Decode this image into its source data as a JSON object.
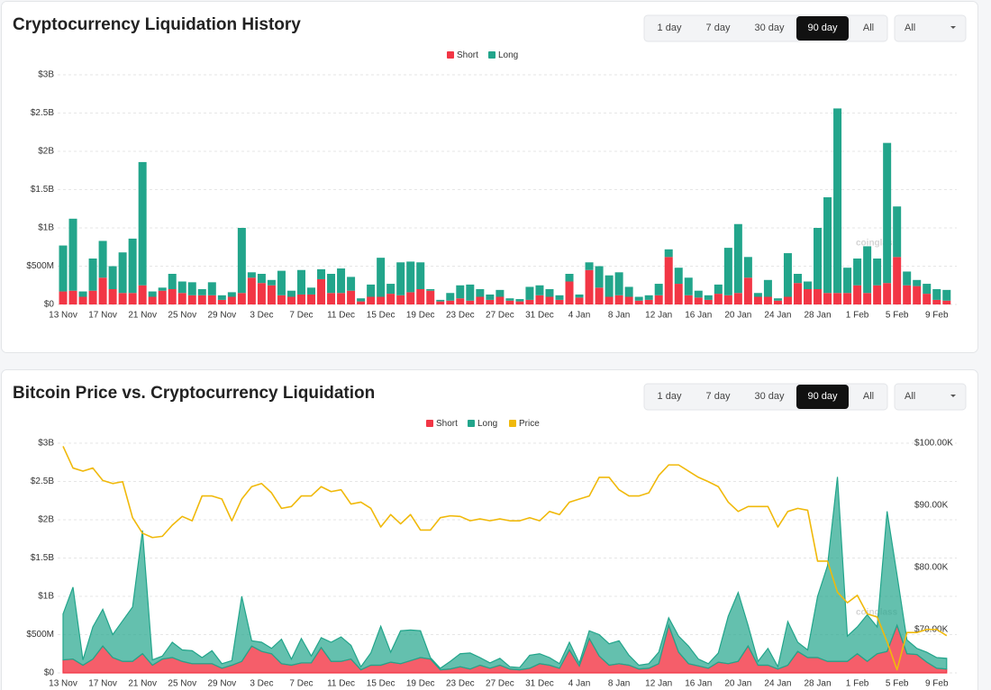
{
  "controls": {
    "ranges": [
      "1 day",
      "7 day",
      "30 day",
      "90 day",
      "All"
    ],
    "active": 3,
    "select": "All"
  },
  "chart_data": [
    {
      "type": "bar",
      "title": "Cryptocurrency Liquidation History",
      "watermark": "coinglass",
      "legend": "top",
      "grid": true,
      "stacked": true,
      "categories": [
        "13 Nov",
        null,
        null,
        null,
        "17 Nov",
        null,
        null,
        null,
        "21 Nov",
        null,
        null,
        null,
        "25 Nov",
        null,
        null,
        null,
        "29 Nov",
        null,
        null,
        null,
        "3 Dec",
        null,
        null,
        null,
        "7 Dec",
        null,
        null,
        null,
        "11 Dec",
        null,
        null,
        null,
        "15 Dec",
        null,
        null,
        null,
        "19 Dec",
        null,
        null,
        null,
        "23 Dec",
        null,
        null,
        null,
        "27 Dec",
        null,
        null,
        null,
        "31 Dec",
        null,
        null,
        null,
        "4 Jan",
        null,
        null,
        null,
        "8 Jan",
        null,
        null,
        null,
        "12 Jan",
        null,
        null,
        null,
        "16 Jan",
        null,
        null,
        null,
        "20 Jan",
        null,
        null,
        null,
        "24 Jan",
        null,
        null,
        null,
        "28 Jan",
        null,
        null,
        null,
        "1 Feb",
        null,
        null,
        null,
        "5 Feb",
        null,
        null,
        null,
        "9 Feb",
        null
      ],
      "ylim": [
        0,
        3
      ],
      "yticks": [
        {
          "value": 0,
          "label": "$0"
        },
        {
          "value": 0.5,
          "label": "$500M"
        },
        {
          "value": 1,
          "label": "$1B"
        },
        {
          "value": 1.5,
          "label": "$1.5B"
        },
        {
          "value": 2,
          "label": "$2B"
        },
        {
          "value": 2.5,
          "label": "$2.5B"
        },
        {
          "value": 3,
          "label": "$3B"
        }
      ],
      "series": [
        {
          "name": "Short",
          "color": "#f23645",
          "values": [
            0.17,
            0.18,
            0.1,
            0.18,
            0.35,
            0.2,
            0.15,
            0.15,
            0.25,
            0.1,
            0.18,
            0.2,
            0.15,
            0.12,
            0.12,
            0.12,
            0.06,
            0.1,
            0.15,
            0.35,
            0.28,
            0.25,
            0.12,
            0.1,
            0.13,
            0.13,
            0.33,
            0.15,
            0.15,
            0.18,
            0.04,
            0.1,
            0.1,
            0.14,
            0.12,
            0.16,
            0.2,
            0.18,
            0.04,
            0.05,
            0.08,
            0.05,
            0.1,
            0.06,
            0.1,
            0.05,
            0.04,
            0.06,
            0.12,
            0.1,
            0.06,
            0.3,
            0.09,
            0.45,
            0.22,
            0.1,
            0.12,
            0.1,
            0.05,
            0.06,
            0.12,
            0.62,
            0.27,
            0.12,
            0.09,
            0.06,
            0.14,
            0.12,
            0.15,
            0.35,
            0.1,
            0.1,
            0.05,
            0.1,
            0.28,
            0.2,
            0.2,
            0.15,
            0.15,
            0.15,
            0.25,
            0.15,
            0.25,
            0.28,
            0.62,
            0.25,
            0.24,
            0.14,
            0.06,
            0.05
          ]
        },
        {
          "name": "Long",
          "color": "#22a58b",
          "values": [
            0.6,
            0.94,
            0.07,
            0.42,
            0.48,
            0.3,
            0.53,
            0.71,
            1.61,
            0.07,
            0.04,
            0.2,
            0.15,
            0.17,
            0.08,
            0.17,
            0.06,
            0.06,
            0.85,
            0.07,
            0.12,
            0.07,
            0.32,
            0.08,
            0.32,
            0.09,
            0.13,
            0.25,
            0.32,
            0.18,
            0.04,
            0.16,
            0.51,
            0.13,
            0.43,
            0.4,
            0.35,
            0.02,
            0.02,
            0.1,
            0.17,
            0.21,
            0.1,
            0.07,
            0.09,
            0.03,
            0.03,
            0.17,
            0.13,
            0.1,
            0.06,
            0.1,
            0.04,
            0.1,
            0.28,
            0.28,
            0.3,
            0.13,
            0.05,
            0.06,
            0.15,
            0.1,
            0.21,
            0.23,
            0.09,
            0.06,
            0.12,
            0.62,
            0.9,
            0.27,
            0.05,
            0.22,
            0.03,
            0.57,
            0.12,
            0.1,
            0.8,
            1.25,
            2.41,
            0.33,
            0.35,
            0.61,
            0.35,
            1.83,
            0.66,
            0.18,
            0.08,
            0.13,
            0.14,
            0.14
          ]
        }
      ]
    },
    {
      "type": "area",
      "title": "Bitcoin Price vs. Cryptocurrency Liquidation",
      "watermark": "coinglass",
      "legend": "top",
      "grid": true,
      "stacked": true,
      "categories": [
        "13 Nov",
        null,
        null,
        null,
        "17 Nov",
        null,
        null,
        null,
        "21 Nov",
        null,
        null,
        null,
        "25 Nov",
        null,
        null,
        null,
        "29 Nov",
        null,
        null,
        null,
        "3 Dec",
        null,
        null,
        null,
        "7 Dec",
        null,
        null,
        null,
        "11 Dec",
        null,
        null,
        null,
        "15 Dec",
        null,
        null,
        null,
        "19 Dec",
        null,
        null,
        null,
        "23 Dec",
        null,
        null,
        null,
        "27 Dec",
        null,
        null,
        null,
        "31 Dec",
        null,
        null,
        null,
        "4 Jan",
        null,
        null,
        null,
        "8 Jan",
        null,
        null,
        null,
        "12 Jan",
        null,
        null,
        null,
        "16 Jan",
        null,
        null,
        null,
        "20 Jan",
        null,
        null,
        null,
        "24 Jan",
        null,
        null,
        null,
        "28 Jan",
        null,
        null,
        null,
        "1 Feb",
        null,
        null,
        null,
        "5 Feb",
        null,
        null,
        null,
        "9 Feb",
        null
      ],
      "ylim": [
        0,
        3
      ],
      "yticks": [
        {
          "value": 0,
          "label": "$0"
        },
        {
          "value": 0.5,
          "label": "$500M"
        },
        {
          "value": 1,
          "label": "$1B"
        },
        {
          "value": 1.5,
          "label": "$1.5B"
        },
        {
          "value": 2,
          "label": "$2B"
        },
        {
          "value": 2.5,
          "label": "$2.5B"
        },
        {
          "value": 3,
          "label": "$3B"
        }
      ],
      "y2lim": [
        63000,
        100000
      ],
      "y2ticks": [
        {
          "value": 70000,
          "label": "$70.00K"
        },
        {
          "value": 80000,
          "label": "$80.00K"
        },
        {
          "value": 90000,
          "label": "$90.00K"
        },
        {
          "value": 100000,
          "label": "$100.00K"
        }
      ],
      "series": [
        {
          "name": "Short",
          "color": "#f23645",
          "values": [
            0.17,
            0.18,
            0.1,
            0.18,
            0.35,
            0.2,
            0.15,
            0.15,
            0.25,
            0.1,
            0.18,
            0.2,
            0.15,
            0.12,
            0.12,
            0.12,
            0.06,
            0.1,
            0.15,
            0.35,
            0.28,
            0.25,
            0.12,
            0.1,
            0.13,
            0.13,
            0.33,
            0.15,
            0.15,
            0.18,
            0.04,
            0.1,
            0.1,
            0.14,
            0.12,
            0.16,
            0.2,
            0.18,
            0.04,
            0.05,
            0.08,
            0.05,
            0.1,
            0.06,
            0.1,
            0.05,
            0.04,
            0.06,
            0.12,
            0.1,
            0.06,
            0.3,
            0.09,
            0.45,
            0.22,
            0.1,
            0.12,
            0.1,
            0.05,
            0.06,
            0.12,
            0.62,
            0.27,
            0.12,
            0.09,
            0.06,
            0.14,
            0.12,
            0.15,
            0.35,
            0.1,
            0.1,
            0.05,
            0.1,
            0.28,
            0.2,
            0.2,
            0.15,
            0.15,
            0.15,
            0.25,
            0.15,
            0.25,
            0.28,
            0.62,
            0.25,
            0.24,
            0.14,
            0.06,
            0.05
          ]
        },
        {
          "name": "Long",
          "color": "#22a58b",
          "values": [
            0.6,
            0.94,
            0.07,
            0.42,
            0.48,
            0.3,
            0.53,
            0.71,
            1.61,
            0.07,
            0.04,
            0.2,
            0.15,
            0.17,
            0.08,
            0.17,
            0.06,
            0.06,
            0.85,
            0.07,
            0.12,
            0.07,
            0.32,
            0.08,
            0.32,
            0.09,
            0.13,
            0.25,
            0.32,
            0.18,
            0.04,
            0.16,
            0.51,
            0.13,
            0.43,
            0.4,
            0.35,
            0.02,
            0.02,
            0.1,
            0.17,
            0.21,
            0.1,
            0.07,
            0.09,
            0.03,
            0.03,
            0.17,
            0.13,
            0.1,
            0.06,
            0.1,
            0.04,
            0.1,
            0.28,
            0.28,
            0.3,
            0.13,
            0.05,
            0.06,
            0.15,
            0.1,
            0.21,
            0.23,
            0.09,
            0.06,
            0.12,
            0.62,
            0.9,
            0.27,
            0.05,
            0.22,
            0.03,
            0.57,
            0.12,
            0.1,
            0.8,
            1.25,
            2.41,
            0.33,
            0.35,
            0.61,
            0.35,
            1.83,
            0.66,
            0.18,
            0.08,
            0.13,
            0.14,
            0.14
          ]
        },
        {
          "name": "Price",
          "color": "#f0b90b",
          "axis": "y2",
          "values": [
            99500,
            96000,
            95500,
            96000,
            94000,
            93500,
            93800,
            88000,
            85500,
            84800,
            85000,
            86800,
            88200,
            87500,
            91500,
            91500,
            91000,
            87500,
            91000,
            93000,
            93500,
            92000,
            89500,
            89800,
            91500,
            91500,
            93000,
            92200,
            92500,
            90200,
            90500,
            89500,
            86500,
            88500,
            87000,
            88500,
            86000,
            86000,
            88000,
            88300,
            88200,
            87500,
            87800,
            87500,
            87800,
            87500,
            87500,
            88000,
            87500,
            89000,
            88500,
            90500,
            91000,
            91500,
            94500,
            94500,
            92500,
            91500,
            91500,
            92000,
            94800,
            96500,
            96500,
            95500,
            94500,
            93800,
            93000,
            90500,
            89000,
            89800,
            89800,
            89800,
            86500,
            89000,
            89500,
            89200,
            81000,
            81000,
            76000,
            74300,
            75500,
            72500,
            72000,
            68000,
            63500,
            69500,
            69500,
            70000,
            70000,
            69000
          ]
        }
      ]
    }
  ]
}
